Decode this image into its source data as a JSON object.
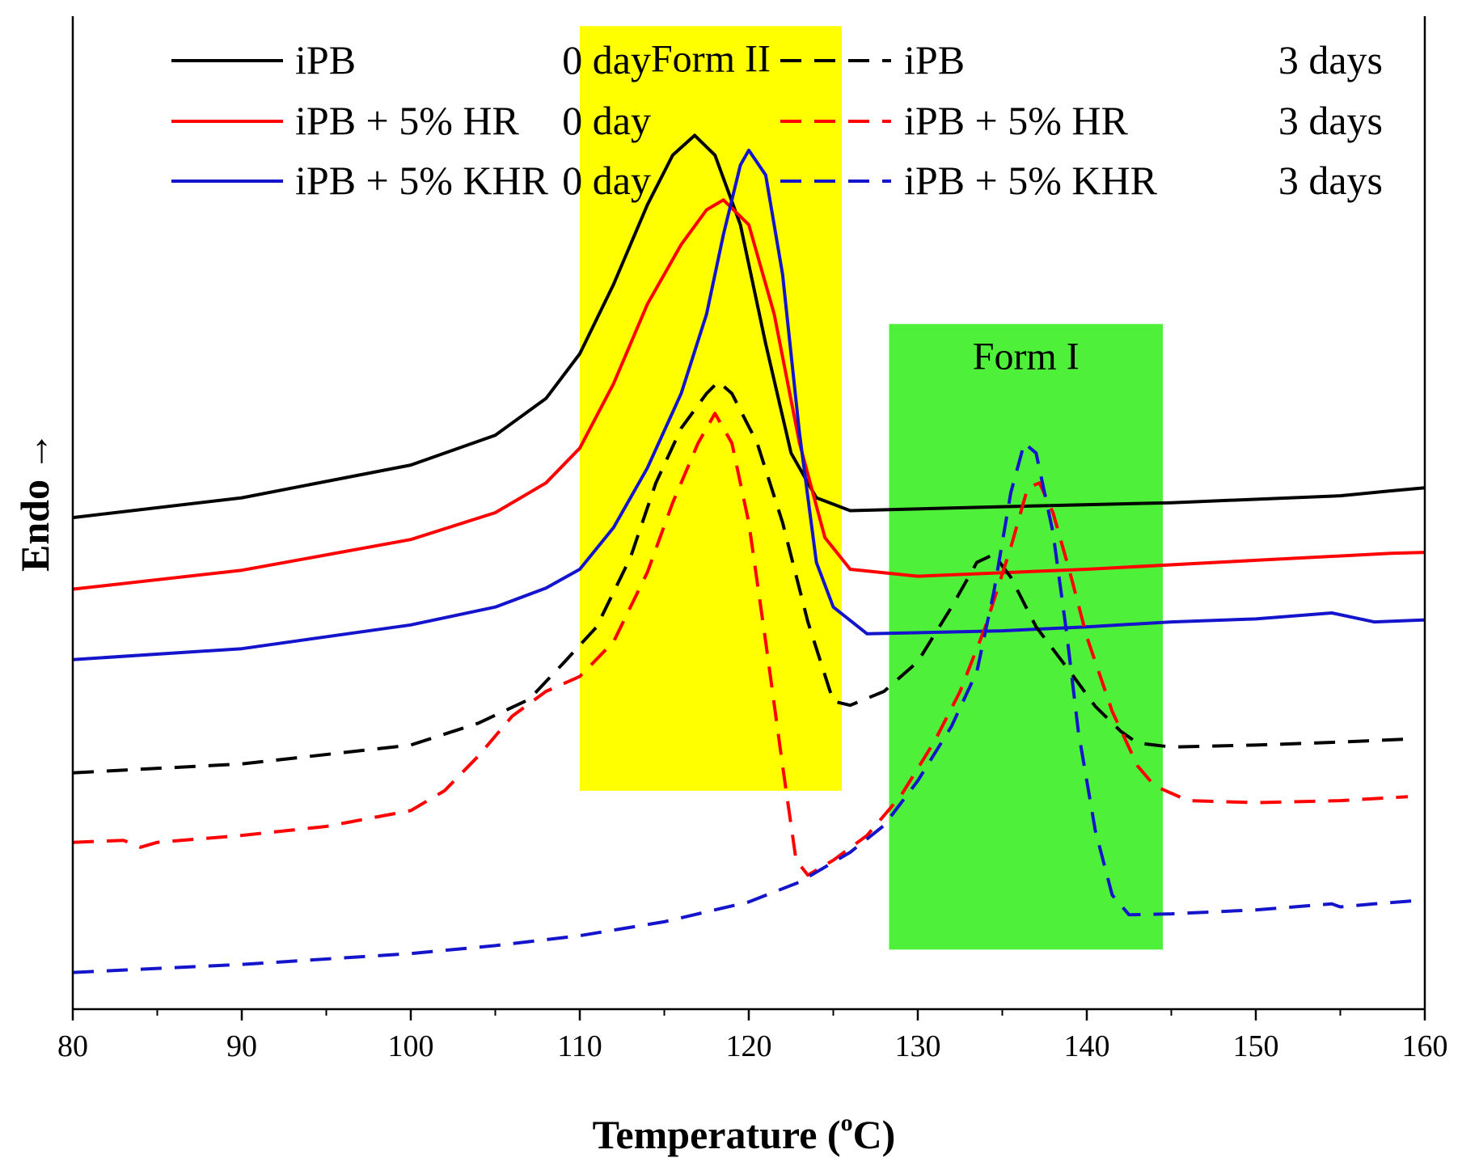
{
  "chart_data": {
    "type": "line",
    "title": "",
    "xlabel": "Temperature (",
    "xlabel_sup": "o",
    "xlabel_unit": "C)",
    "ylabel": "Endo",
    "ylabel_arrow": "→",
    "xlim": [
      80,
      160
    ],
    "ylim": [
      0,
      100
    ],
    "xticks": [
      "80",
      "90",
      "100",
      "110",
      "120",
      "130",
      "140",
      "150",
      "160"
    ],
    "grid": false,
    "legend_position": "top",
    "regions": [
      {
        "label": "Form II",
        "x0": 110,
        "x1": 125.5,
        "y0": 22,
        "y1": 99,
        "color": "#ffff00"
      },
      {
        "label": "Form I",
        "x0": 128.3,
        "x1": 144.5,
        "y0": 6,
        "y1": 69,
        "color": "#4ff03a"
      }
    ],
    "series": [
      {
        "name": "iPB",
        "time": "0 day",
        "color": "#000000",
        "dash": "solid",
        "points": [
          [
            80,
            49.5
          ],
          [
            90,
            51.5
          ],
          [
            100,
            54.8
          ],
          [
            105,
            57.8
          ],
          [
            108,
            61.5
          ],
          [
            110,
            66
          ],
          [
            112,
            73
          ],
          [
            114,
            81
          ],
          [
            115.5,
            86
          ],
          [
            116.8,
            88
          ],
          [
            118,
            86
          ],
          [
            119.5,
            79
          ],
          [
            121,
            67
          ],
          [
            122.5,
            56
          ],
          [
            124,
            51.5
          ],
          [
            126,
            50.2
          ],
          [
            135,
            50.6
          ],
          [
            145,
            51
          ],
          [
            155,
            51.7
          ],
          [
            158,
            52.2
          ],
          [
            160,
            52.5
          ]
        ]
      },
      {
        "name": "iPB + 5% HR",
        "time": "0 day",
        "color": "#ff0000",
        "dash": "solid",
        "points": [
          [
            80,
            42.3
          ],
          [
            90,
            44.2
          ],
          [
            100,
            47.3
          ],
          [
            105,
            50
          ],
          [
            108,
            53
          ],
          [
            110,
            56.5
          ],
          [
            112,
            63
          ],
          [
            114,
            71
          ],
          [
            116,
            77
          ],
          [
            117.5,
            80.5
          ],
          [
            118.5,
            81.5
          ],
          [
            120,
            79
          ],
          [
            121.5,
            70
          ],
          [
            123,
            57
          ],
          [
            124.5,
            47.5
          ],
          [
            126,
            44.3
          ],
          [
            130,
            43.6
          ],
          [
            140,
            44.3
          ],
          [
            150,
            45.2
          ],
          [
            158,
            45.9
          ],
          [
            160,
            46
          ]
        ]
      },
      {
        "name": "iPB + 5% KHR",
        "time": "0 day",
        "color": "#1414cc",
        "dash": "solid",
        "points": [
          [
            80,
            35.2
          ],
          [
            90,
            36.3
          ],
          [
            100,
            38.7
          ],
          [
            105,
            40.5
          ],
          [
            108,
            42.4
          ],
          [
            110,
            44.3
          ],
          [
            112,
            48.5
          ],
          [
            114,
            54.5
          ],
          [
            116,
            62
          ],
          [
            117.5,
            70
          ],
          [
            118.5,
            78
          ],
          [
            119.5,
            85
          ],
          [
            120,
            86.5
          ],
          [
            121,
            84
          ],
          [
            122,
            74
          ],
          [
            123,
            58
          ],
          [
            124,
            45
          ],
          [
            125,
            40.5
          ],
          [
            127,
            37.8
          ],
          [
            135,
            38.1
          ],
          [
            140,
            38.5
          ],
          [
            145,
            39
          ],
          [
            150,
            39.3
          ],
          [
            154.5,
            39.9
          ],
          [
            157,
            39
          ],
          [
            160,
            39.2
          ]
        ]
      },
      {
        "name": "iPB",
        "time": "3 days",
        "color": "#000000",
        "dash": "dashed",
        "points": [
          [
            80,
            23.8
          ],
          [
            90,
            24.7
          ],
          [
            100,
            26.6
          ],
          [
            104,
            28.8
          ],
          [
            107,
            31.2
          ],
          [
            109,
            34.8
          ],
          [
            111,
            38.5
          ],
          [
            113,
            45.5
          ],
          [
            114.5,
            53
          ],
          [
            116,
            58.5
          ],
          [
            117.5,
            62
          ],
          [
            118.2,
            63.2
          ],
          [
            119,
            62
          ],
          [
            120.5,
            57
          ],
          [
            122,
            49
          ],
          [
            123.5,
            39
          ],
          [
            125,
            31
          ],
          [
            126,
            30.6
          ],
          [
            128,
            32
          ],
          [
            130,
            35
          ],
          [
            132,
            40.5
          ],
          [
            133.5,
            45
          ],
          [
            134.5,
            45.8
          ],
          [
            135.5,
            43.5
          ],
          [
            137,
            38.5
          ],
          [
            139,
            34
          ],
          [
            140.5,
            30.5
          ],
          [
            142,
            28
          ],
          [
            143,
            26.8
          ],
          [
            145,
            26.4
          ],
          [
            150,
            26.6
          ],
          [
            155,
            26.9
          ],
          [
            159,
            27.2
          ]
        ]
      },
      {
        "name": "iPB + 5% HR",
        "time": "3 days",
        "color": "#ff0000",
        "dash": "dashed",
        "points": [
          [
            80,
            16.8
          ],
          [
            83,
            17
          ],
          [
            84,
            16.3
          ],
          [
            85,
            16.8
          ],
          [
            90,
            17.5
          ],
          [
            95,
            18.4
          ],
          [
            100,
            20
          ],
          [
            102,
            22
          ],
          [
            104,
            25.5
          ],
          [
            106,
            29.5
          ],
          [
            108,
            32
          ],
          [
            110,
            33.5
          ],
          [
            112,
            37
          ],
          [
            114,
            44
          ],
          [
            115.5,
            51
          ],
          [
            117,
            57
          ],
          [
            118,
            60
          ],
          [
            119,
            57
          ],
          [
            120,
            49
          ],
          [
            121,
            37
          ],
          [
            122,
            24.5
          ],
          [
            122.8,
            15
          ],
          [
            123.5,
            13.5
          ],
          [
            125,
            15
          ],
          [
            127,
            17.5
          ],
          [
            129,
            21.5
          ],
          [
            131,
            27
          ],
          [
            132.5,
            32
          ],
          [
            134,
            38.5
          ],
          [
            135.5,
            46.5
          ],
          [
            136.5,
            52.5
          ],
          [
            137.2,
            53
          ],
          [
            138,
            50
          ],
          [
            139,
            44
          ],
          [
            140,
            37.5
          ],
          [
            141.5,
            30
          ],
          [
            143,
            24.5
          ],
          [
            144,
            22.5
          ],
          [
            146,
            21
          ],
          [
            150,
            20.8
          ],
          [
            155,
            21
          ],
          [
            159,
            21.4
          ]
        ]
      },
      {
        "name": "iPB + 5% KHR",
        "time": "3 days",
        "color": "#1414cc",
        "dash": "dashed",
        "points": [
          [
            80,
            3.7
          ],
          [
            90,
            4.5
          ],
          [
            100,
            5.6
          ],
          [
            105,
            6.4
          ],
          [
            110,
            7.4
          ],
          [
            115,
            8.8
          ],
          [
            120,
            10.8
          ],
          [
            123,
            12.8
          ],
          [
            126,
            15.8
          ],
          [
            128,
            18.5
          ],
          [
            130,
            23
          ],
          [
            132,
            28.5
          ],
          [
            133.5,
            34
          ],
          [
            134.5,
            42
          ],
          [
            135.5,
            52
          ],
          [
            136.3,
            57
          ],
          [
            137,
            56
          ],
          [
            138,
            48
          ],
          [
            138.8,
            38
          ],
          [
            139.5,
            28
          ],
          [
            140.5,
            18
          ],
          [
            141.5,
            11.5
          ],
          [
            142.5,
            9.5
          ],
          [
            145,
            9.6
          ],
          [
            150,
            10
          ],
          [
            154.5,
            10.6
          ],
          [
            155,
            10.3
          ],
          [
            157,
            10.6
          ],
          [
            160,
            11
          ]
        ]
      }
    ]
  }
}
